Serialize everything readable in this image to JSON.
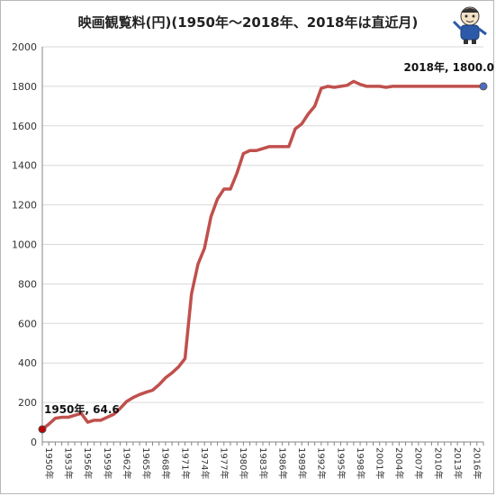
{
  "chart_data": {
    "type": "line",
    "title": "映画観覧料(円)(1950年〜2018年、2018年は直近月)",
    "ylim": [
      0,
      2000
    ],
    "yticks": [
      0,
      200,
      400,
      600,
      800,
      1000,
      1200,
      1400,
      1600,
      1800,
      2000
    ],
    "xlim": [
      1950,
      2018
    ],
    "xtick_labels": [
      "1950年",
      "1953年",
      "1956年",
      "1959年",
      "1962年",
      "1965年",
      "1968年",
      "1971年",
      "1974年",
      "1977年",
      "1980年",
      "1983年",
      "1986年",
      "1989年",
      "1992年",
      "1995年",
      "1998年",
      "2001年",
      "2004年",
      "2007年",
      "2010年",
      "2013年",
      "2016年"
    ],
    "grid": "horizontal",
    "line_color": "#c0504d",
    "series": [
      {
        "x": [
          1950,
          1951,
          1952,
          1953,
          1954,
          1955,
          1956,
          1957,
          1958,
          1959,
          1960,
          1961,
          1962,
          1963,
          1964,
          1965,
          1966,
          1967,
          1968,
          1969,
          1970,
          1971,
          1972,
          1973,
          1974,
          1975,
          1976,
          1977,
          1978,
          1979,
          1980,
          1981,
          1982,
          1983,
          1984,
          1985,
          1986,
          1987,
          1988,
          1989,
          1990,
          1991,
          1992,
          1993,
          1994,
          1995,
          1996,
          1997,
          1998,
          1999,
          2000,
          2001,
          2002,
          2003,
          2004,
          2005,
          2006,
          2007,
          2008,
          2009,
          2010,
          2011,
          2012,
          2013,
          2014,
          2015,
          2016,
          2017,
          2018
        ],
        "y": [
          64.6,
          90,
          120,
          125,
          125,
          135,
          145,
          100,
          110,
          110,
          125,
          140,
          170,
          205,
          225,
          240,
          252,
          262,
          290,
          325,
          350,
          380,
          422,
          750,
          900,
          980,
          1140,
          1230,
          1280,
          1280,
          1360,
          1460,
          1475,
          1475,
          1485,
          1495,
          1495,
          1495,
          1495,
          1585,
          1610,
          1660,
          1700,
          1790,
          1800,
          1795,
          1800,
          1805,
          1825,
          1810,
          1800,
          1800,
          1800,
          1795,
          1800,
          1800,
          1800,
          1800,
          1800,
          1800,
          1800,
          1800,
          1800,
          1800,
          1800,
          1800,
          1800,
          1800,
          1800
        ]
      }
    ],
    "annotations": [
      {
        "text": "1950年, 64.6",
        "x": 1950,
        "y": 64.6,
        "marker_color": "#c00000"
      },
      {
        "text": "2018年, 1800.0",
        "x": 2018,
        "y": 1800,
        "marker_color": "#4a6fc4"
      }
    ]
  }
}
